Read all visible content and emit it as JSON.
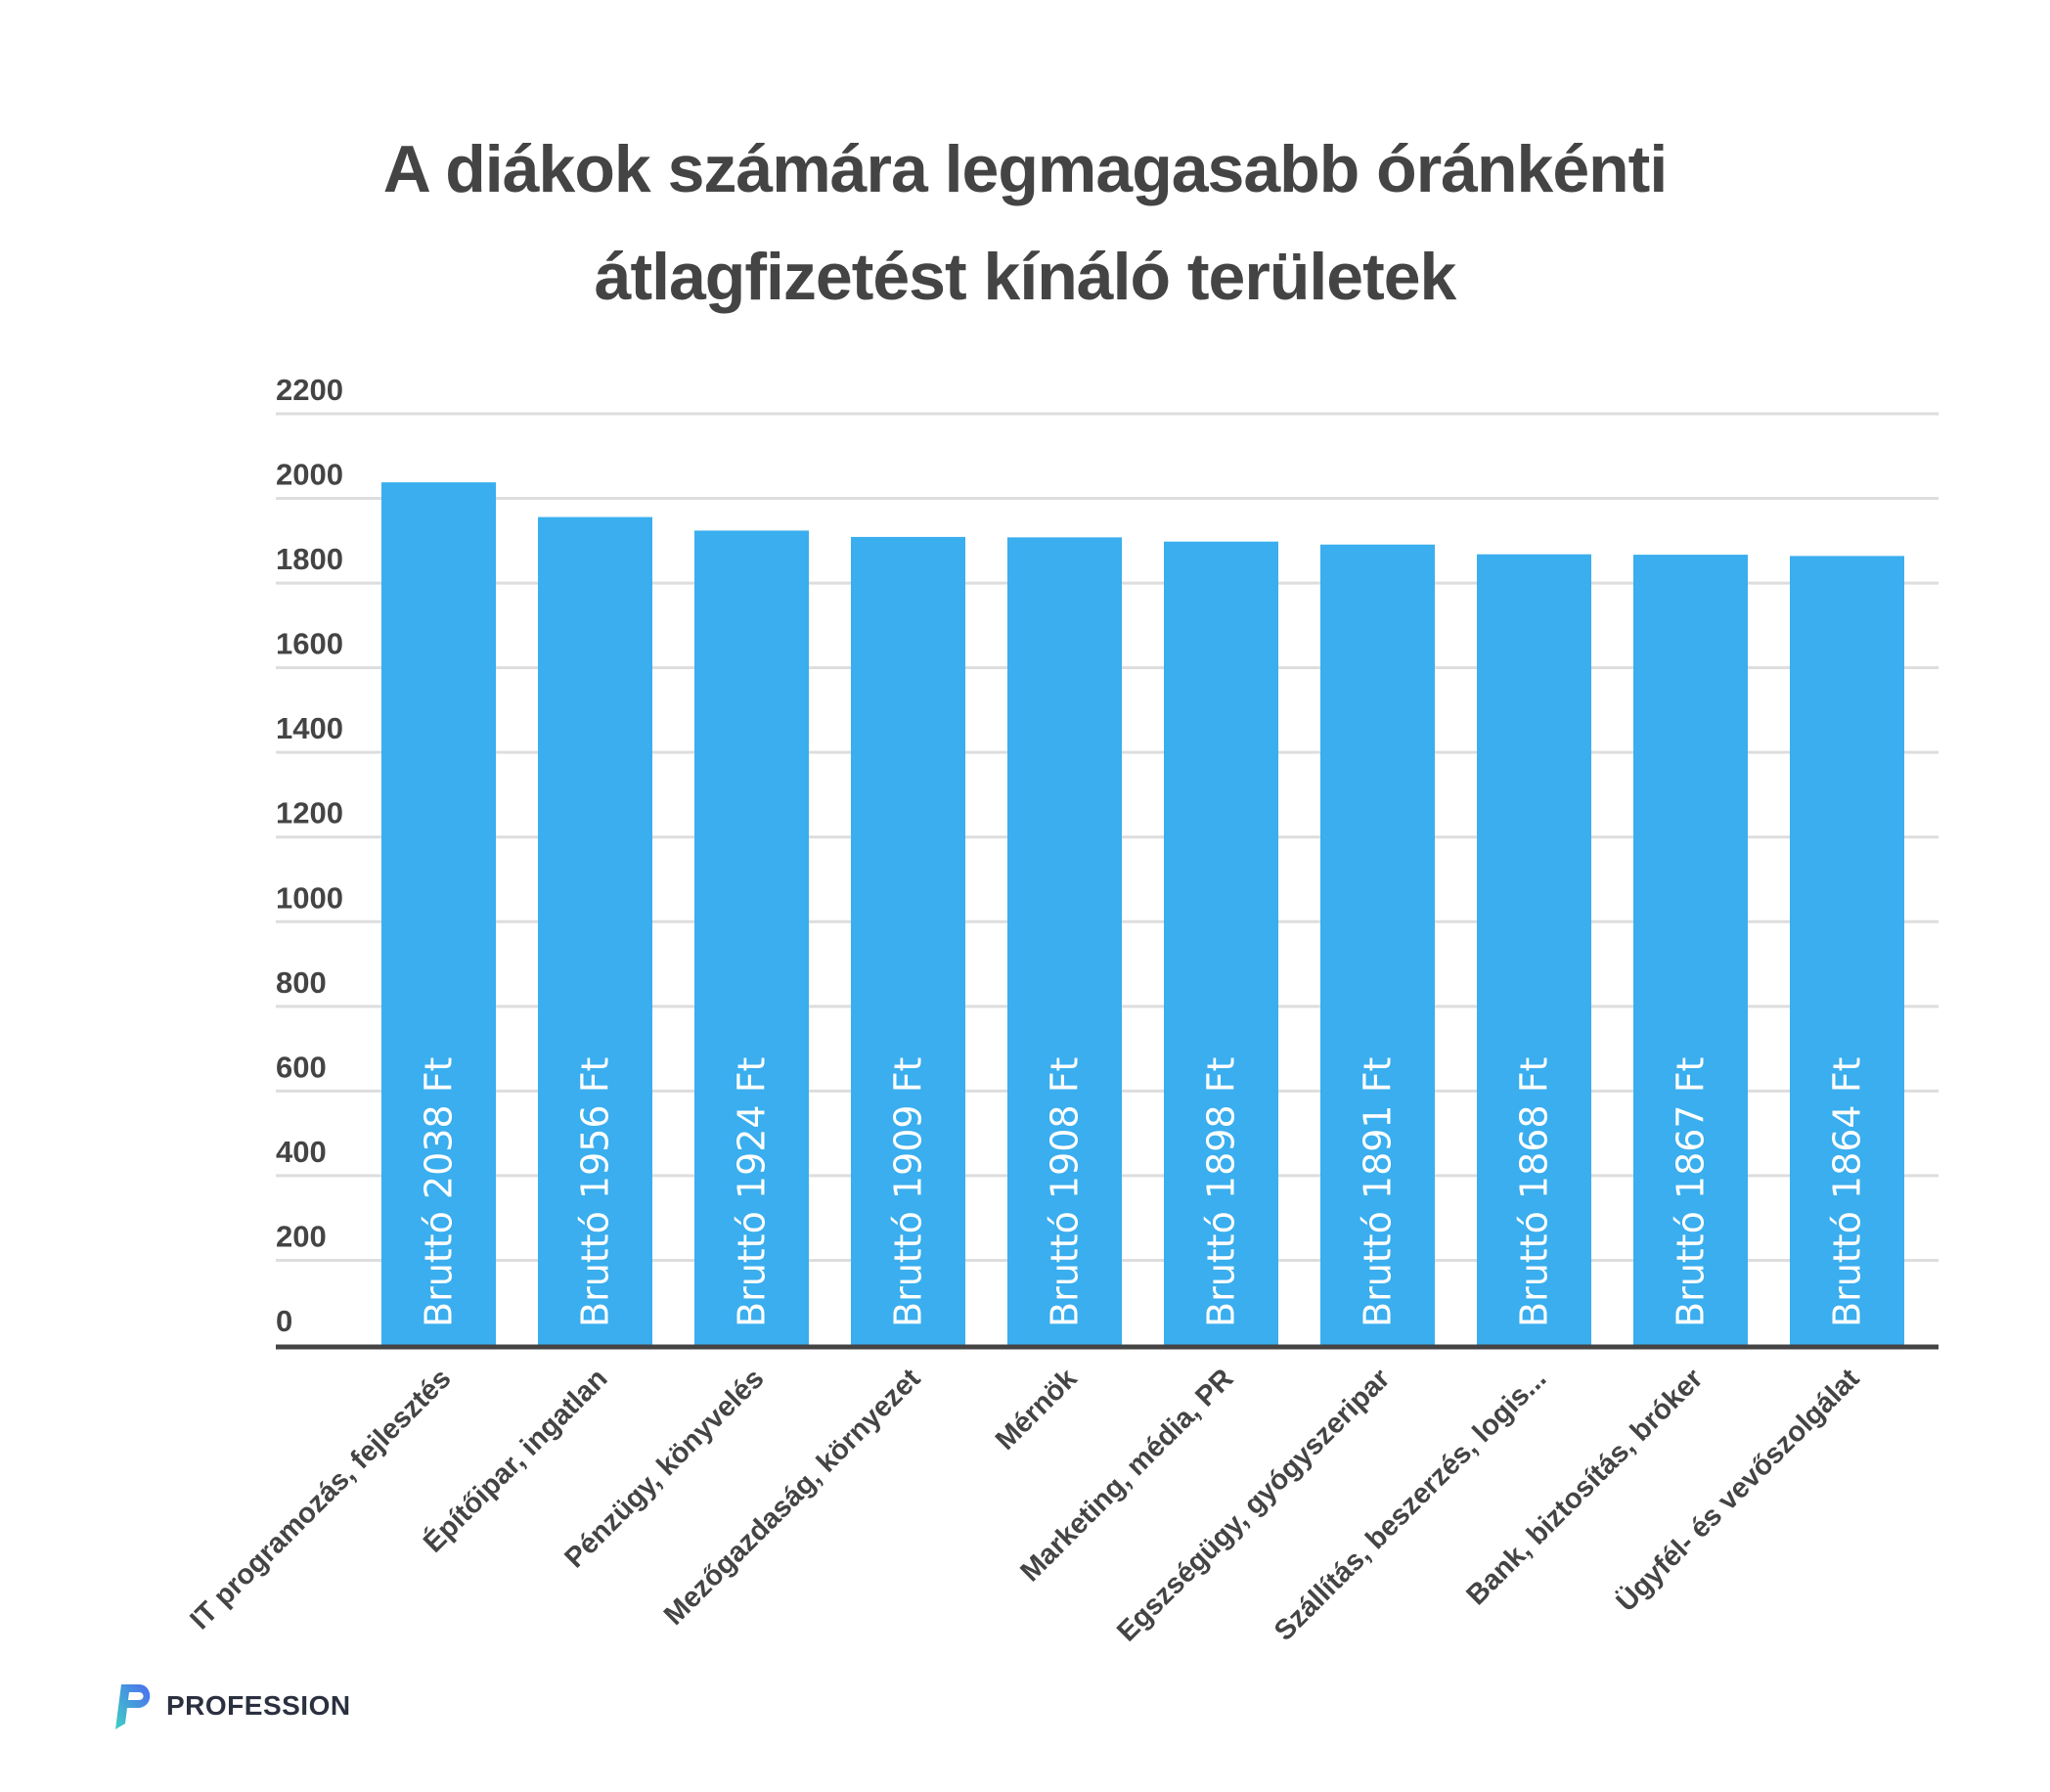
{
  "chart_data": {
    "type": "bar",
    "title": "A diákok számára legmagasabb óránkénti átlagfizetést kínáló területek",
    "title_lines": [
      "A diákok számára legmagasabb óránkénti",
      "átlagfizetést kínáló területek"
    ],
    "categories": [
      "IT programozás, fejlesztés",
      "Építőipar, ingatlan",
      "Pénzügy, könyvelés",
      "Mezőgazdaság, környezet",
      "Mérnök",
      "Marketing, média, PR",
      "Egszségügy, gyógyszeripar",
      "Szállítás, beszerzés, logis...",
      "Bank, biztosítás, bróker",
      "Ügyfél- és vevőszolgálat"
    ],
    "values": [
      2038,
      1956,
      1924,
      1909,
      1908,
      1898,
      1891,
      1868,
      1867,
      1864
    ],
    "data_labels": [
      "Bruttó 2038 Ft",
      "Bruttó 1956 Ft",
      "Bruttó 1924 Ft",
      "Bruttó 1909 Ft",
      "Bruttó 1908 Ft",
      "Bruttó 1898 Ft",
      "Bruttó 1891 Ft",
      "Bruttó 1868 Ft",
      "Bruttó 1867 Ft",
      "Bruttó 1864 Ft"
    ],
    "yticks": [
      "0",
      "200",
      "400",
      "600",
      "800",
      "1000",
      "1200",
      "1400",
      "1600",
      "1800",
      "2000",
      "2200"
    ],
    "ylim": [
      0,
      2200
    ],
    "xlabel": "",
    "ylabel": "",
    "grid": true,
    "legend": "none",
    "bar_color": "#3aaeee",
    "text_color": "#444444"
  },
  "logo": {
    "text": "PROFESSION"
  }
}
